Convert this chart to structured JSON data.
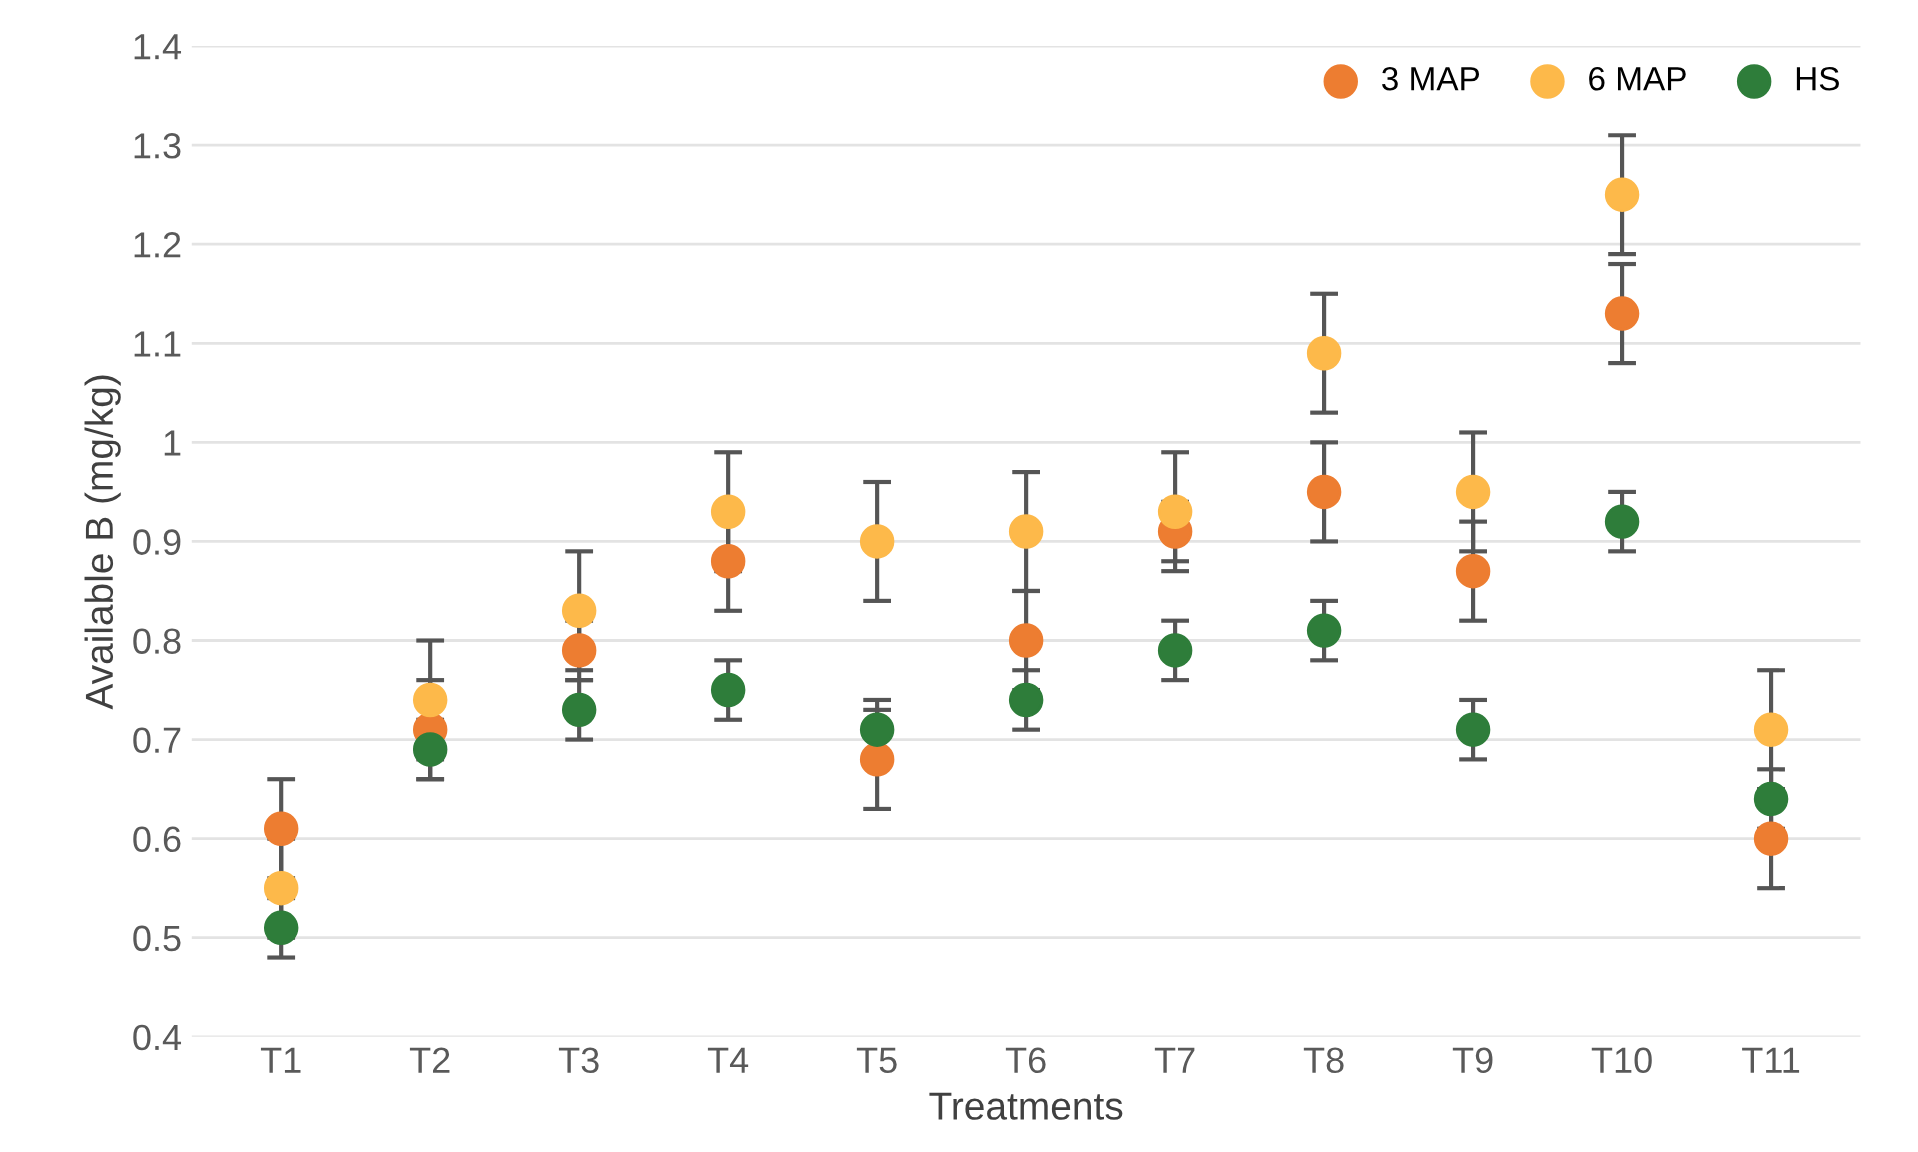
{
  "chart_data": {
    "type": "scatter",
    "xlabel": "Treatments",
    "ylabel": "Available B (mg/kg)",
    "categories": [
      "T1",
      "T2",
      "T3",
      "T4",
      "T5",
      "T6",
      "T7",
      "T8",
      "T9",
      "T10",
      "T11"
    ],
    "series": [
      {
        "name": "3 MAP",
        "color": "#ed7d31",
        "values": [
          0.61,
          0.71,
          0.79,
          0.88,
          0.68,
          0.8,
          0.91,
          0.95,
          0.87,
          1.13,
          0.6
        ],
        "errors": [
          0.05,
          0.05,
          0.03,
          0.05,
          0.05,
          0.05,
          0.03,
          0.05,
          0.05,
          0.05,
          0.05
        ]
      },
      {
        "name": "6 MAP",
        "color": "#fdb94a",
        "values": [
          0.55,
          0.74,
          0.83,
          0.93,
          0.9,
          0.91,
          0.93,
          1.09,
          0.95,
          1.25,
          0.71
        ],
        "errors": [
          0.05,
          0.06,
          0.06,
          0.06,
          0.06,
          0.06,
          0.06,
          0.06,
          0.06,
          0.06,
          0.06
        ]
      },
      {
        "name": "HS",
        "color": "#2e7d3a",
        "values": [
          0.51,
          0.69,
          0.73,
          0.75,
          0.71,
          0.74,
          0.79,
          0.81,
          0.71,
          0.92,
          0.64
        ],
        "errors": [
          0.03,
          0.03,
          0.03,
          0.03,
          0.03,
          0.03,
          0.03,
          0.03,
          0.03,
          0.03,
          0.03
        ]
      }
    ],
    "ylim": [
      0.4,
      1.4
    ],
    "yticks": [
      0.4,
      0.5,
      0.6,
      0.7,
      0.8,
      0.9,
      1,
      1.1,
      1.2,
      1.3,
      1.4
    ],
    "grid": "y",
    "legend": "top right",
    "marker": "circle"
  }
}
